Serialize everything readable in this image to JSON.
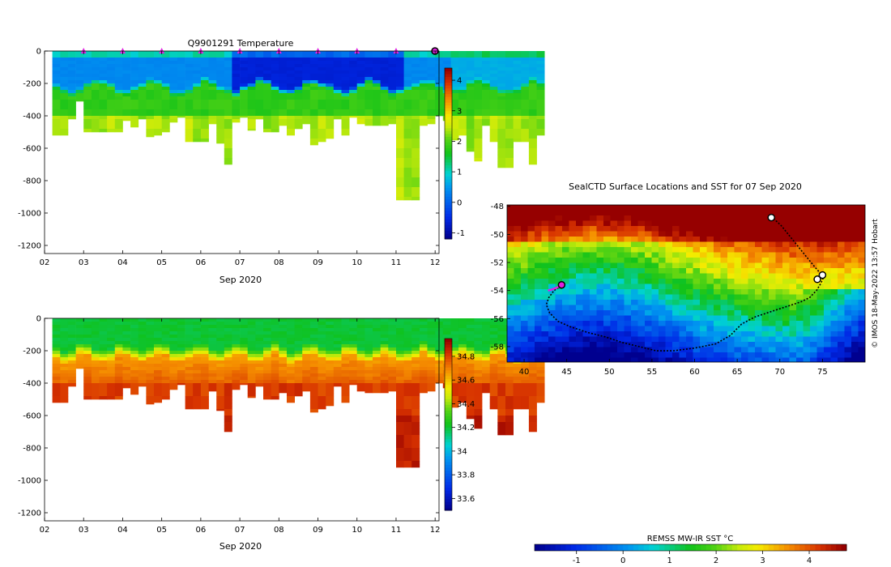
{
  "temperature_section": {
    "title": "Q9901291  Temperature",
    "xlabel": "Sep 2020",
    "colorbar_ticks": [
      "-1",
      "0",
      "1",
      "2",
      "3",
      "4"
    ]
  },
  "salinity_section": {
    "title": "",
    "xlabel": "Sep 2020",
    "colorbar_ticks": [
      "33.6",
      "33.8",
      "34",
      "34.2",
      "34.4",
      "34.6",
      "34.8"
    ]
  },
  "map": {
    "title": "SealCTD Surface Locations and SST for 07 Sep 2020",
    "credit": "© IMOS 18-May-2022 13:57 Hobart",
    "colorbar_label": "REMSS MW-IR SST °C",
    "colorbar_ticks": [
      "-1",
      "0",
      "1",
      "2",
      "3",
      "4"
    ]
  },
  "colors": {
    "cold": "#00008f",
    "blue": "#0a5fd8",
    "cyan": "#00c8e0",
    "green": "#10c21a",
    "yellow": "#f2ee10",
    "orange": "#f08a00",
    "red": "#a00000",
    "marker": "#e020e0"
  },
  "chart_data": [
    {
      "type": "heatmap",
      "title": "Q9901291  Temperature",
      "xlabel": "Sep 2020",
      "ylabel": "",
      "x_ticks": [
        "02",
        "03",
        "04",
        "05",
        "06",
        "07",
        "08",
        "09",
        "10",
        "11",
        "12"
      ],
      "x_range": [
        2,
        12.1
      ],
      "y_ticks": [
        0,
        -200,
        -400,
        -600,
        -800,
        -1000,
        -1200
      ],
      "ylim": [
        -1250,
        0
      ],
      "color_range": [
        -1.2,
        4.4
      ],
      "colorbar_ticks": [
        -1,
        0,
        1,
        2,
        3,
        4
      ],
      "profile_markers": [
        3,
        4,
        5,
        6,
        7,
        8,
        9,
        10,
        11
      ],
      "profile_start": 2.2,
      "profile_step": 0.2,
      "profile_max_depths": [
        520,
        520,
        420,
        310,
        500,
        500,
        500,
        500,
        500,
        430,
        470,
        420,
        530,
        520,
        500,
        440,
        410,
        560,
        560,
        560,
        450,
        570,
        700,
        440,
        410,
        490,
        420,
        500,
        500,
        460,
        520,
        480,
        450,
        580,
        560,
        540,
        420,
        520,
        410,
        450,
        460,
        460,
        460,
        450,
        920,
        920,
        920,
        460,
        450,
        400,
        430,
        550,
        520,
        620,
        680,
        460,
        560,
        720,
        720,
        560,
        560,
        700,
        520
      ]
    },
    {
      "type": "heatmap",
      "title": "",
      "xlabel": "Sep 2020",
      "ylabel": "",
      "x_ticks": [
        "02",
        "03",
        "04",
        "05",
        "06",
        "07",
        "08",
        "09",
        "10",
        "11",
        "12"
      ],
      "x_range": [
        2,
        12.1
      ],
      "y_ticks": [
        0,
        -200,
        -400,
        -600,
        -800,
        -1000,
        -1200
      ],
      "ylim": [
        -1250,
        0
      ],
      "color_range": [
        33.5,
        34.95
      ],
      "colorbar_ticks": [
        33.6,
        33.8,
        34.0,
        34.2,
        34.4,
        34.6,
        34.8
      ],
      "profile_start": 2.2,
      "profile_step": 0.2,
      "profile_max_depths": [
        520,
        520,
        420,
        310,
        500,
        500,
        500,
        500,
        500,
        430,
        470,
        420,
        530,
        520,
        500,
        440,
        410,
        560,
        560,
        560,
        450,
        570,
        700,
        440,
        410,
        490,
        420,
        500,
        500,
        460,
        520,
        480,
        450,
        580,
        560,
        540,
        420,
        520,
        410,
        450,
        460,
        460,
        460,
        450,
        920,
        920,
        920,
        460,
        450,
        400,
        430,
        550,
        520,
        620,
        680,
        460,
        560,
        720,
        720,
        560,
        560,
        700,
        520
      ]
    },
    {
      "type": "heatmap",
      "title": "SealCTD Surface Locations and SST for 07 Sep 2020",
      "xlabel": "",
      "ylabel": "",
      "x_ticks": [
        40,
        45,
        50,
        55,
        60,
        65,
        70,
        75
      ],
      "x_range": [
        38,
        80
      ],
      "y_ticks": [
        -48,
        -50,
        -52,
        -54,
        -56,
        -58
      ],
      "ylim": [
        -59.1,
        -47.9
      ],
      "colorbar_label": "REMSS MW-IR SST °C",
      "color_range": [
        -1.9,
        4.8
      ],
      "colorbar_ticks": [
        -1,
        0,
        1,
        2,
        3,
        4
      ],
      "track": [
        [
          69.0,
          -48.7
        ],
        [
          69.5,
          -49.0
        ],
        [
          70.2,
          -49.4
        ],
        [
          71.0,
          -50.0
        ],
        [
          71.8,
          -50.6
        ],
        [
          72.6,
          -51.2
        ],
        [
          73.4,
          -51.8
        ],
        [
          74.2,
          -52.4
        ],
        [
          74.8,
          -52.8
        ],
        [
          75.1,
          -53.1
        ],
        [
          74.8,
          -53.5
        ],
        [
          74.3,
          -54.0
        ],
        [
          73.5,
          -54.5
        ],
        [
          72.5,
          -54.8
        ],
        [
          71.0,
          -55.1
        ],
        [
          69.0,
          -55.5
        ],
        [
          67.0,
          -55.9
        ],
        [
          65.5,
          -56.4
        ],
        [
          64.2,
          -57.2
        ],
        [
          62.5,
          -57.8
        ],
        [
          60.0,
          -58.1
        ],
        [
          57.5,
          -58.3
        ],
        [
          55.5,
          -58.3
        ],
        [
          53.5,
          -58.0
        ],
        [
          51.5,
          -57.7
        ],
        [
          49.5,
          -57.3
        ],
        [
          47.5,
          -57.0
        ],
        [
          45.5,
          -56.6
        ],
        [
          44.0,
          -56.2
        ],
        [
          43.0,
          -55.6
        ],
        [
          42.6,
          -55.0
        ],
        [
          42.9,
          -54.5
        ],
        [
          43.5,
          -54.0
        ],
        [
          44.3,
          -53.7
        ]
      ],
      "track_highlight": [
        [
          42.8,
          -54.0
        ],
        [
          43.4,
          -53.9
        ],
        [
          44.2,
          -53.7
        ]
      ],
      "current_location": [
        44.4,
        -53.6
      ],
      "other_locations": [
        [
          69.0,
          -48.8
        ],
        [
          75.0,
          -52.9
        ],
        [
          74.4,
          -53.2
        ]
      ]
    }
  ]
}
